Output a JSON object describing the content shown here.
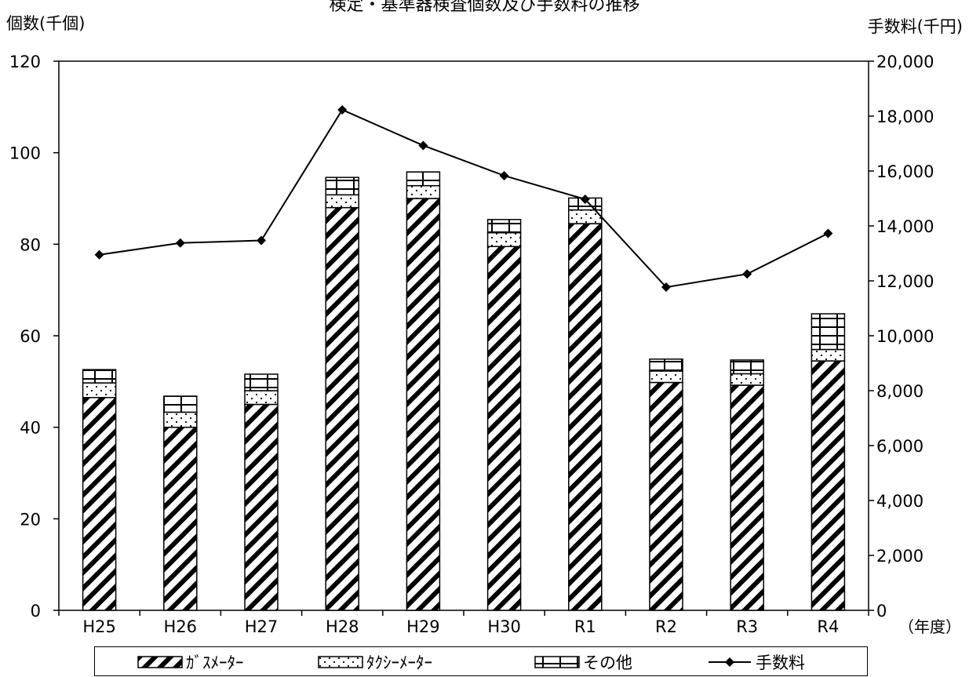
{
  "chart_data": {
    "type": "bar",
    "title": "検定・基準器検査個数及び手数料の推移",
    "categories": [
      "H25",
      "H26",
      "H27",
      "H28",
      "H29",
      "H30",
      "R1",
      "R2",
      "R3",
      "R4"
    ],
    "x_unit_label": "（年度）",
    "ylabel_left": "個数(千個)",
    "ylabel_right": "手数料(千円)",
    "ylim_left": [
      0,
      120
    ],
    "ylim_right": [
      0,
      20000
    ],
    "yticks_left": [
      "0",
      "20",
      "40",
      "60",
      "80",
      "100",
      "120"
    ],
    "yticks_right": [
      "0",
      "2,000",
      "4,000",
      "6,000",
      "8,000",
      "10,000",
      "12,000",
      "14,000",
      "16,000",
      "18,000",
      "20,000"
    ],
    "grid": false,
    "legend_position": "bottom",
    "series": [
      {
        "name": "ｶﾞｽﾒｰﾀｰ",
        "type": "stacked-bar",
        "axis": "left",
        "pattern": "diagonal-hatch",
        "values": [
          46.5,
          40.0,
          45.0,
          88.0,
          90.0,
          79.5,
          84.5,
          49.8,
          49.2,
          54.5
        ]
      },
      {
        "name": "ﾀｸｼｰﾒｰﾀｰ",
        "type": "stacked-bar",
        "axis": "left",
        "pattern": "dots",
        "values": [
          3.2,
          3.3,
          3.0,
          2.8,
          2.8,
          3.0,
          3.0,
          2.5,
          2.5,
          2.5
        ]
      },
      {
        "name": "その他",
        "type": "stacked-bar",
        "axis": "left",
        "pattern": "grid",
        "values": [
          2.9,
          3.5,
          3.6,
          3.8,
          3.0,
          2.9,
          2.6,
          2.6,
          3.0,
          7.8
        ]
      },
      {
        "name": "手数料",
        "type": "line",
        "axis": "right",
        "marker": "diamond",
        "values": [
          12950,
          13380,
          13470,
          18230,
          16930,
          15830,
          14970,
          11770,
          12250,
          13730
        ]
      }
    ]
  },
  "colors": {
    "ink": "#000000",
    "background": "#ffffff"
  }
}
